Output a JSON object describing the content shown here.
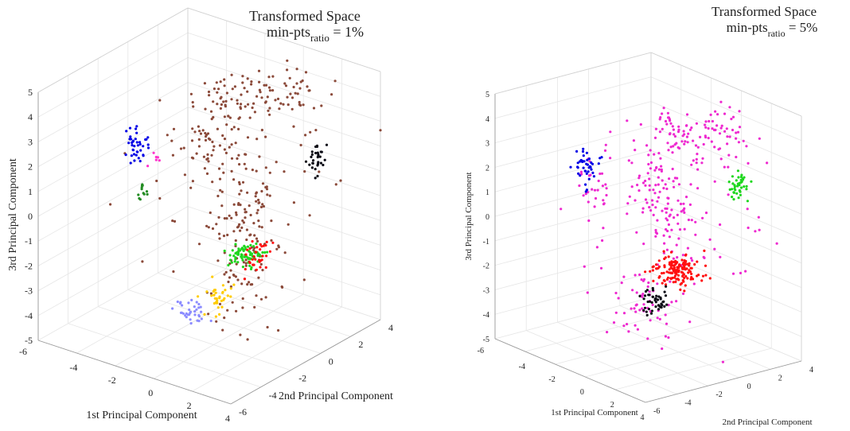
{
  "chart_data": [
    {
      "type": "scatter",
      "projection": "3d",
      "title": {
        "line1": "Transformed Space",
        "line2_main": "min-pts",
        "line2_sub": "ratio",
        "line2_tail": " = 1%"
      },
      "xlabel": "1st Principal Component",
      "ylabel": "2nd Principal Component",
      "zlabel": "3rd Principal Component",
      "xlim": [
        -6,
        4
      ],
      "ylim": [
        -6,
        4
      ],
      "zlim": [
        -5,
        5
      ],
      "xticks": [
        "-4",
        "-2",
        "0",
        "2",
        "4"
      ],
      "yticks": [
        "-6",
        "-4",
        "-2",
        "0",
        "2",
        "4"
      ],
      "zticks": [
        "-5",
        "-4",
        "-3",
        "-2",
        "-1",
        "0",
        "1",
        "2",
        "3",
        "4",
        "5"
      ],
      "grid": true,
      "series": [
        {
          "color": "#8b4a3a",
          "clusters": [
            {
              "c": [
                -1.2,
                1.5,
                3.2
              ],
              "s": [
                1.3,
                0.8,
                0.45
              ],
              "n": 70
            },
            {
              "c": [
                0.5,
                2.5,
                3.8
              ],
              "s": [
                1.0,
                0.6,
                0.5
              ],
              "n": 45
            },
            {
              "c": [
                -2.8,
                1.0,
                1.2
              ],
              "s": [
                0.6,
                0.6,
                0.9
              ],
              "n": 55
            },
            {
              "c": [
                2.2,
                -2.4,
                1.2
              ],
              "s": [
                0.5,
                0.8,
                1.1
              ],
              "n": 85
            },
            {
              "c": [
                2.2,
                -2.8,
                -1.5
              ],
              "s": [
                0.8,
                0.8,
                1.0
              ],
              "n": 55
            },
            {
              "c": [
                0.0,
                0.0,
                0.0
              ],
              "s": [
                2.6,
                2.6,
                2.0
              ],
              "n": 45
            }
          ]
        },
        {
          "color": "#0000e6",
          "clusters": [
            {
              "c": [
                -4.2,
                -1.8,
                1.8
              ],
              "s": [
                0.2,
                0.3,
                0.45
              ],
              "n": 40
            }
          ]
        },
        {
          "color": "#0a0a14",
          "clusters": [
            {
              "c": [
                3.2,
                0.8,
                2.4
              ],
              "s": [
                0.15,
                0.25,
                0.3
              ],
              "n": 30
            }
          ]
        },
        {
          "color": "#1ed71e",
          "clusters": [
            {
              "c": [
                2.0,
                -2.2,
                -0.8
              ],
              "s": [
                0.35,
                0.45,
                0.15
              ],
              "n": 80
            }
          ]
        },
        {
          "color": "#228b22",
          "clusters": [
            {
              "c": [
                -4.2,
                -1.2,
                -0.2
              ],
              "s": [
                0.15,
                0.15,
                0.2
              ],
              "n": 12
            }
          ]
        },
        {
          "color": "#ff0f0f",
          "clusters": [
            {
              "c": [
                2.6,
                -2.5,
                -0.6
              ],
              "s": [
                0.25,
                0.35,
                0.25
              ],
              "n": 35
            }
          ]
        },
        {
          "color": "#ffcc00",
          "clusters": [
            {
              "c": [
                1.8,
                -3.8,
                -2.0
              ],
              "s": [
                0.25,
                0.35,
                0.3
              ],
              "n": 35
            }
          ]
        },
        {
          "color": "#8c8cff",
          "clusters": [
            {
              "c": [
                1.2,
                -5.0,
                -2.3
              ],
              "s": [
                0.4,
                0.4,
                0.25
              ],
              "n": 35
            }
          ]
        },
        {
          "color": "#ff33cc",
          "clusters": [
            {
              "c": [
                -3.7,
                -1.2,
                1.2
              ],
              "s": [
                0.15,
                0.15,
                0.12
              ],
              "n": 6
            }
          ]
        }
      ]
    },
    {
      "type": "scatter",
      "projection": "3d",
      "title": {
        "line1": "Transformed Space",
        "line2_main": "min-pts",
        "line2_sub": "ratio",
        "line2_tail": " = 5%"
      },
      "xlabel": "1st Principal Component",
      "ylabel": "2nd Principal Component",
      "zlabel": "3rd Principal Component",
      "xlim": [
        -6,
        4
      ],
      "ylim": [
        -6,
        4
      ],
      "zlim": [
        -5,
        5
      ],
      "xticks": [
        "-4",
        "-2",
        "0",
        "2",
        "4"
      ],
      "yticks": [
        "-6",
        "-4",
        "-2",
        "0",
        "2",
        "4"
      ],
      "zticks": [
        "-5",
        "-4",
        "-3",
        "-2",
        "-1",
        "0",
        "1",
        "2",
        "3",
        "4",
        "5"
      ],
      "grid": true,
      "series": [
        {
          "color": "#ee2ad0",
          "clusters": [
            {
              "c": [
                -1.2,
                1.5,
                3.2
              ],
              "s": [
                1.3,
                0.8,
                0.45
              ],
              "n": 70
            },
            {
              "c": [
                0.5,
                2.5,
                3.8
              ],
              "s": [
                1.0,
                0.6,
                0.5
              ],
              "n": 40
            },
            {
              "c": [
                -2.8,
                1.0,
                1.2
              ],
              "s": [
                0.6,
                0.6,
                0.9
              ],
              "n": 55
            },
            {
              "c": [
                2.2,
                -2.4,
                1.2
              ],
              "s": [
                0.5,
                0.8,
                1.1
              ],
              "n": 60
            },
            {
              "c": [
                1.6,
                -3.8,
                -2.0
              ],
              "s": [
                0.8,
                0.8,
                0.5
              ],
              "n": 55
            },
            {
              "c": [
                -4.0,
                -1.6,
                1.0
              ],
              "s": [
                0.5,
                0.5,
                1.2
              ],
              "n": 35
            },
            {
              "c": [
                0.0,
                0.0,
                0.0
              ],
              "s": [
                2.6,
                2.6,
                2.0
              ],
              "n": 45
            }
          ]
        },
        {
          "color": "#0000e6",
          "clusters": [
            {
              "c": [
                -4.2,
                -1.8,
                1.8
              ],
              "s": [
                0.2,
                0.3,
                0.45
              ],
              "n": 40
            }
          ]
        },
        {
          "color": "#1ed71e",
          "clusters": [
            {
              "c": [
                3.2,
                0.8,
                2.4
              ],
              "s": [
                0.18,
                0.25,
                0.35
              ],
              "n": 40
            }
          ]
        },
        {
          "color": "#ff0f0f",
          "clusters": [
            {
              "c": [
                2.3,
                -2.4,
                -0.7
              ],
              "s": [
                0.5,
                0.55,
                0.3
              ],
              "n": 140
            }
          ]
        },
        {
          "color": "#0a0a14",
          "clusters": [
            {
              "c": [
                2.0,
                -3.5,
                -1.8
              ],
              "s": [
                0.3,
                0.35,
                0.25
              ],
              "n": 45
            }
          ]
        }
      ]
    }
  ]
}
